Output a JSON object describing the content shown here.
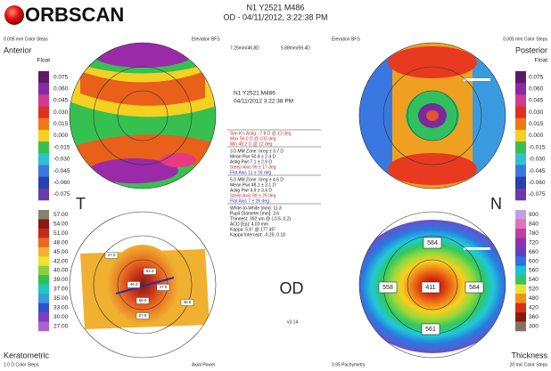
{
  "header": {
    "logo": "ORBSCAN",
    "patient": "N1 Y2521 M486",
    "exam": "OD - 04/11/2012, 3:22:38 PM"
  },
  "anterior": {
    "steps": "0.005 mm Color Steps",
    "map": "Elevation BFS",
    "title": "Anterior",
    "subtitle": "Float",
    "bfs": "7.25mm/46.8D",
    "scale": [
      "0.075",
      "0.060",
      "0.045",
      "0.030",
      "0.015",
      "0.000",
      "-0.015",
      "-0.030",
      "-0.045",
      "-0.060",
      "-0.075"
    ]
  },
  "posterior": {
    "steps": "0.005 mm Color Steps",
    "map": "Elevation BFS",
    "title": "Posterior",
    "subtitle": "Float",
    "bfs": "5.88mm/59.4D",
    "scale": [
      "0.075",
      "0.060",
      "0.045",
      "0.030",
      "0.015",
      "0.000",
      "-0.015",
      "-0.030",
      "-0.045",
      "-0.060",
      "-0.075"
    ]
  },
  "keratometric": {
    "title": "Keratometric",
    "steps": "1.0 D Color Steps",
    "map": "Axial Power",
    "scale": [
      "57.00",
      "54.00",
      "51.00",
      "48.00",
      "45.00",
      "42.00",
      "40.00",
      "39.00",
      "37.00",
      "35.00",
      "33.00",
      "30.00",
      "27.00"
    ],
    "labels": [
      "47.0",
      "53.3",
      "46.3",
      "47.9",
      "56.0",
      "57.9",
      "46.8"
    ]
  },
  "thickness": {
    "title": "Thickness",
    "steps": "20 mic Color Steps",
    "map": "0.95 Pachymetry",
    "scale": [
      "900",
      "840",
      "780",
      "720",
      "660",
      "600",
      "560",
      "540",
      "520",
      "480",
      "420",
      "360",
      "300"
    ],
    "labels": [
      "584",
      "558",
      "411",
      "584",
      "561"
    ]
  },
  "center": {
    "id": "N1 Y2521 M486",
    "date": "04/11/2012 3:22:38 PM",
    "lines": [
      "Sim K's Astig: -7.8 D @ 12 deg",
      "Max  56.0 D @ 102 deg",
      "Min  48.2 D @ 12 deg",
      "3.0 MM Zone:  Irreg  ± 3.7 D",
      "Mean Pwr  50.4  ± 2.4 D",
      "Astig Pwr  7.1  ± 2.9 D",
      "Steep Axis  99  ± 17 deg",
      "Flat Axis  11  ± 16 deg",
      "5.0 MM Zone:  Irreg  ± 4.6 D",
      "Mean Pwr  48.1  ± 3.1 D",
      "Astig Pwr  4.9  ± 3.4 D",
      "Steep Axis  99  ± 29 deg",
      "Flat Axis  7  ± 26 deg",
      "White-to-White [mm]: 11.3",
      "Pupil Diameter [mm]: 3.6",
      "Thinnest: 392 um @ (-0.5, 0.2)",
      "ACD [Ep]: 4.03 mm",
      "Kappa: 5.6° @ 177.45°",
      "Kappa Intercept: -0.25, 0.18"
    ],
    "temporal": "T",
    "nasal": "N",
    "eye": "OD",
    "version": "v3.14"
  }
}
